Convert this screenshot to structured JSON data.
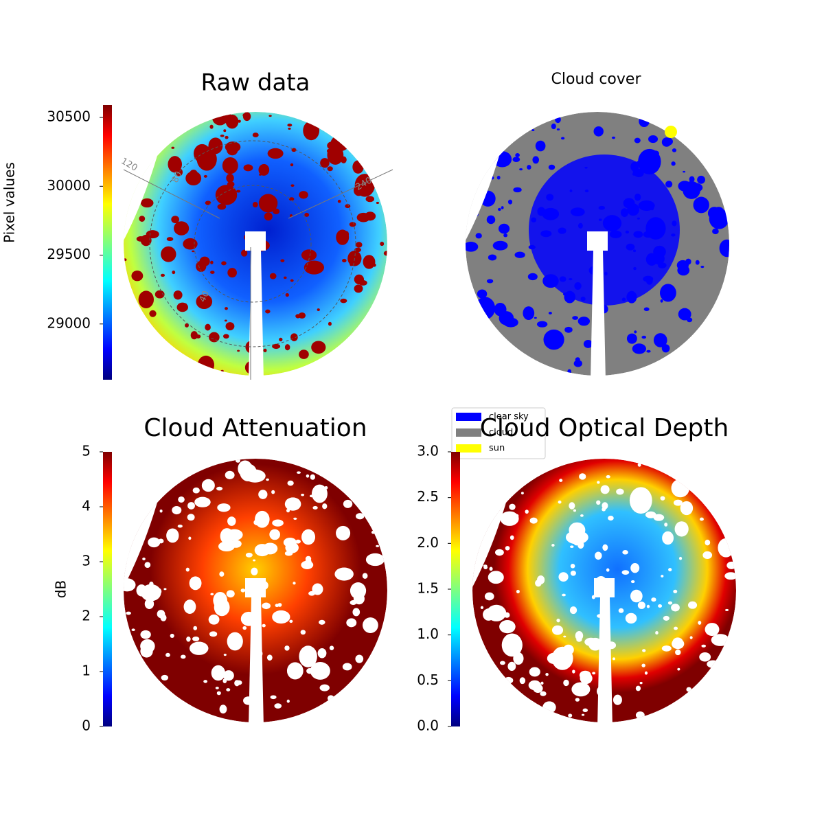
{
  "chart_data": [
    {
      "type": "image",
      "title": "Raw data",
      "colorbar_label": "Pixel values",
      "colormap": "jet",
      "clim": [
        28595,
        30590
      ],
      "cticks": [
        29000,
        29500,
        30000,
        30500
      ],
      "annotations": [
        "120",
        "80",
        "240",
        "40"
      ]
    },
    {
      "type": "image",
      "title": "Cloud cover",
      "legend": [
        {
          "name": "clear sky",
          "color": "#0000ff"
        },
        {
          "name": "cloud",
          "color": "#808080"
        },
        {
          "name": "sun",
          "color": "#ffff00"
        }
      ]
    },
    {
      "type": "image",
      "title": "Cloud Attenuation",
      "colorbar_label": "dB",
      "colormap": "jet",
      "clim": [
        0,
        5
      ],
      "cticks": [
        0,
        1,
        2,
        3,
        4,
        5
      ]
    },
    {
      "type": "image",
      "title": "Cloud Optical Depth",
      "colormap": "jet",
      "clim": [
        0,
        3
      ],
      "cticks": [
        {
          "value": 0,
          "label": "0.0"
        },
        0.5,
        {
          "value": 1,
          "label": "1.0"
        },
        1.5,
        {
          "value": 2,
          "label": "2.0"
        },
        2.5,
        {
          "value": 3,
          "label": "3.0"
        }
      ]
    }
  ]
}
